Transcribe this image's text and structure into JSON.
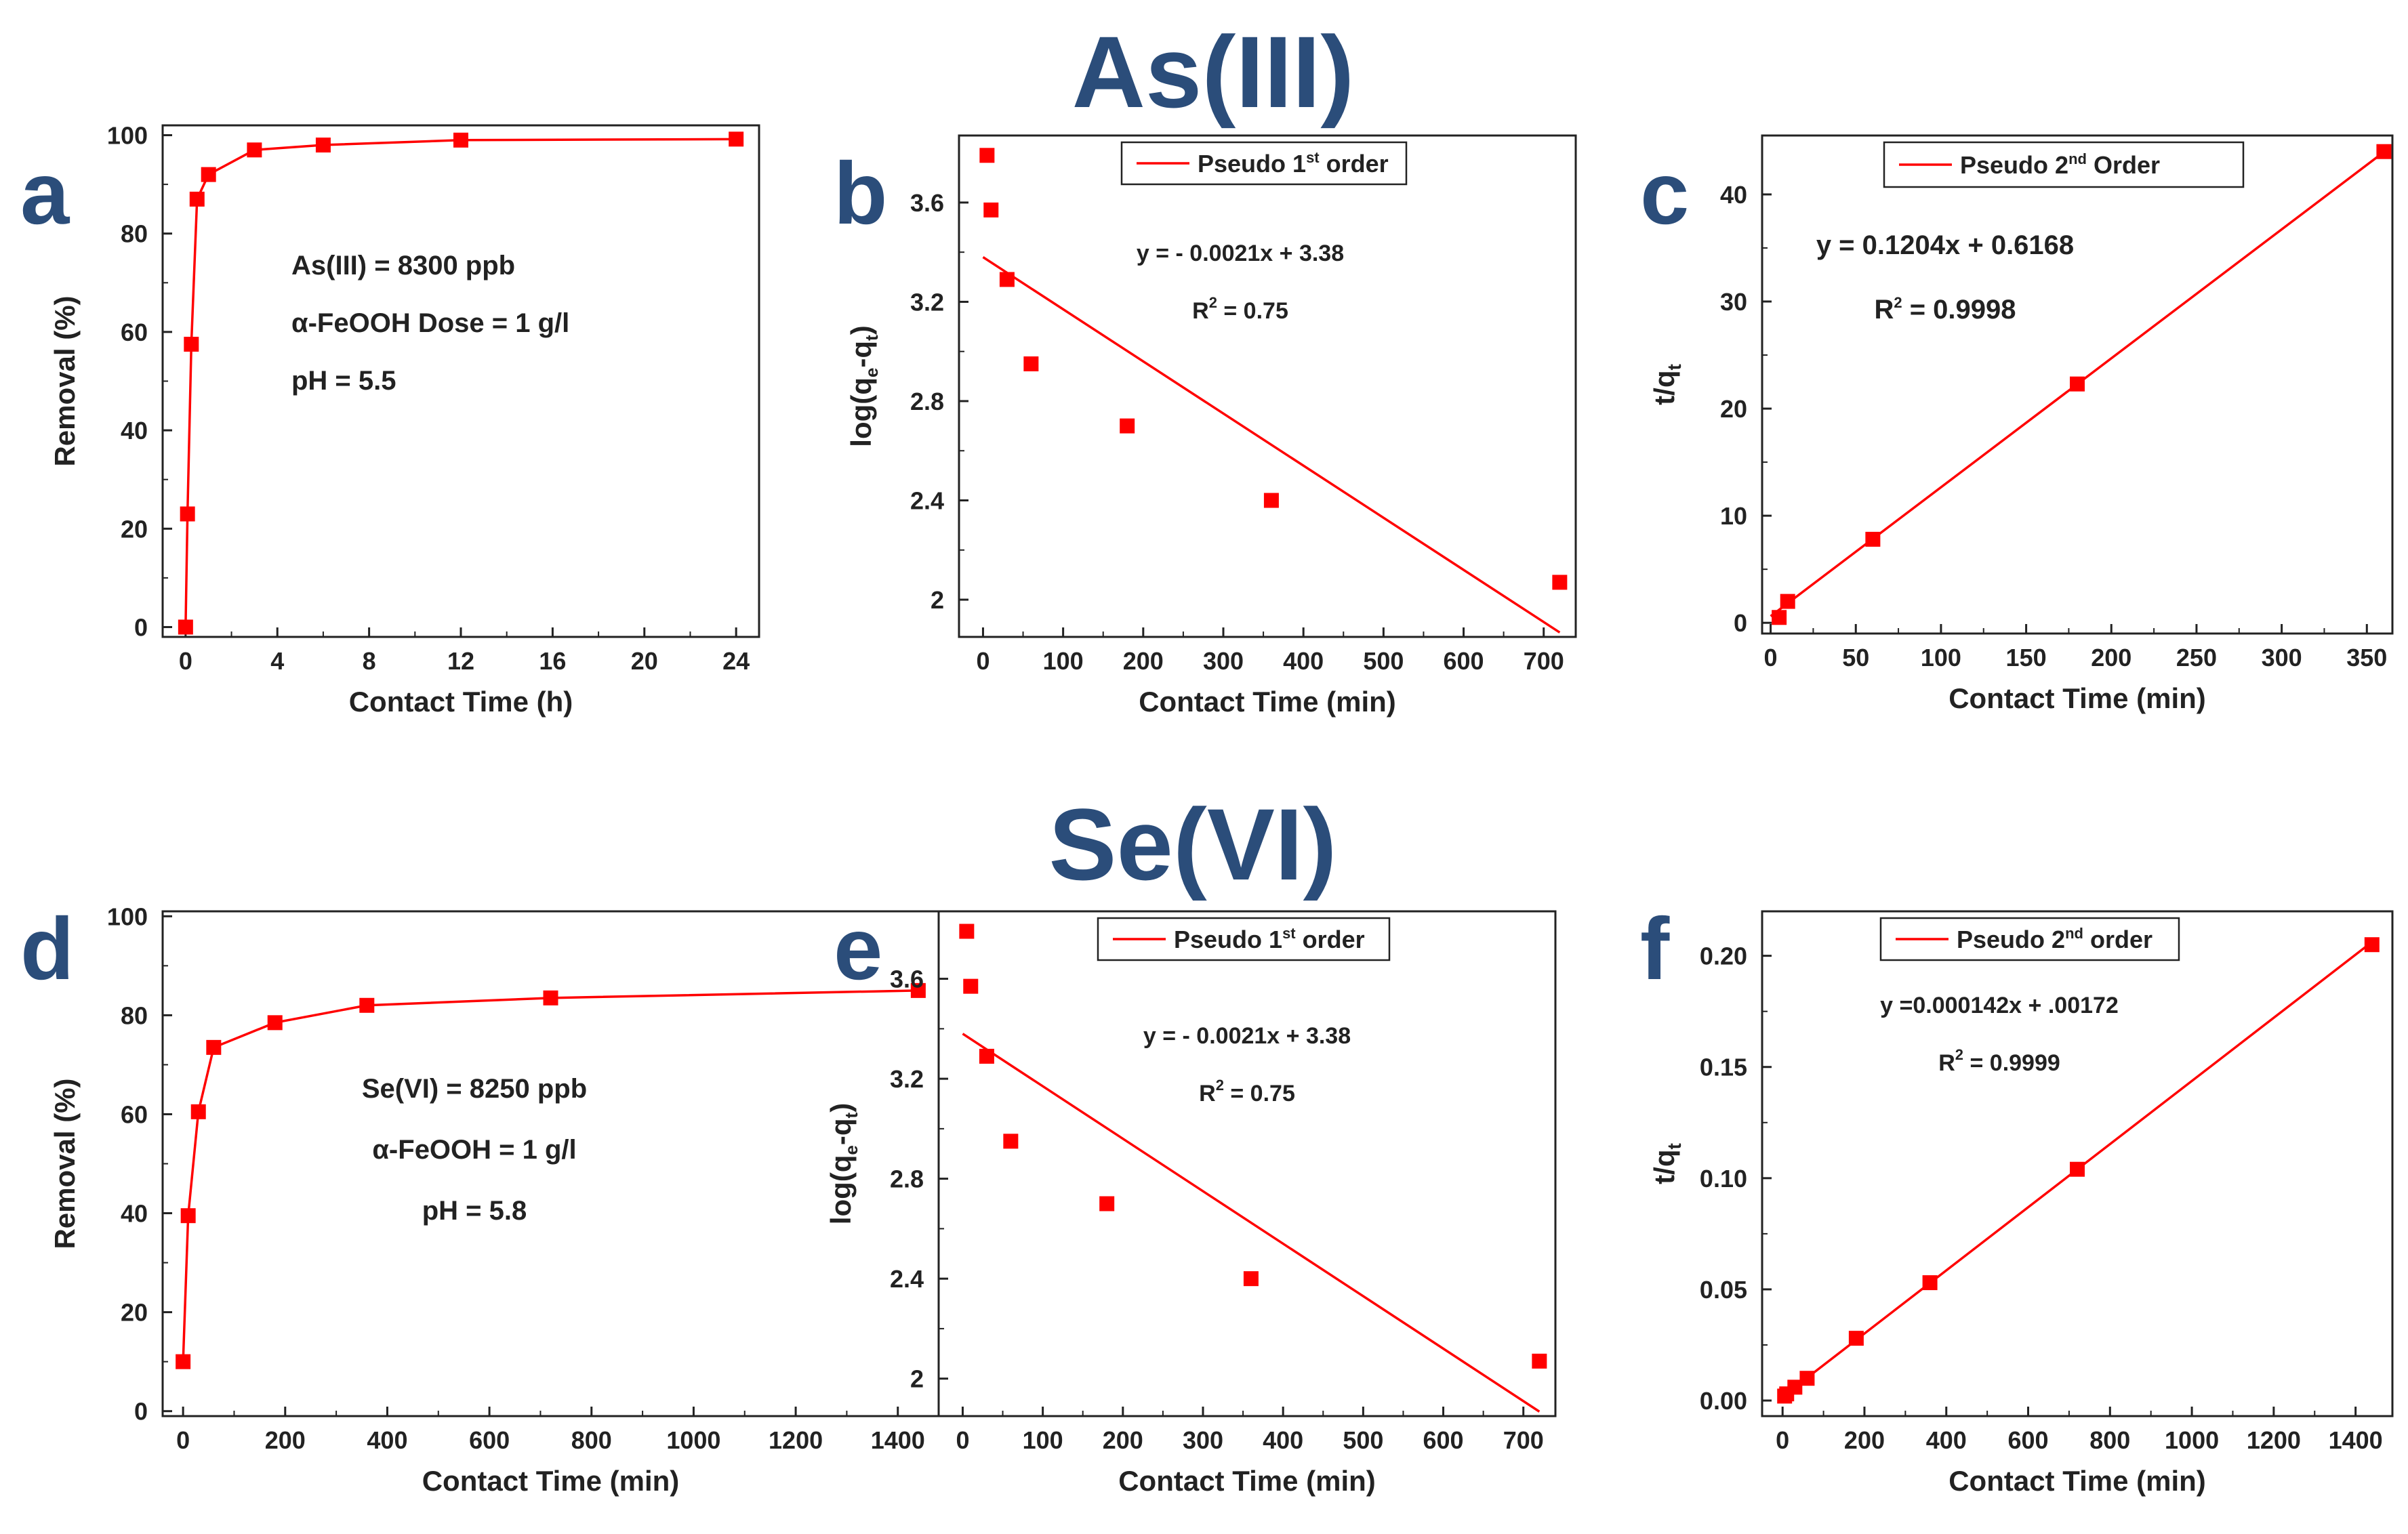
{
  "titles": {
    "as": "As(III)",
    "se": "Se(VI)"
  },
  "colors": {
    "series": "#ff0000",
    "title": "#2b4d7a",
    "axis": "#222222"
  },
  "chart_data": [
    {
      "id": "a",
      "letter": "a",
      "type": "line",
      "xlabel": "Contact Time (h)",
      "ylabel": "Removal (%)",
      "xlim": [
        -1,
        25
      ],
      "ylim": [
        -2,
        102
      ],
      "xticks": [
        0,
        4,
        8,
        12,
        16,
        20,
        24
      ],
      "yticks": [
        0,
        20,
        40,
        60,
        80,
        100
      ],
      "x": [
        0,
        0.083,
        0.25,
        0.5,
        1,
        3,
        6,
        12,
        24
      ],
      "y": [
        0,
        23,
        57.5,
        87,
        92,
        97,
        98,
        99,
        99.2
      ],
      "connect": true,
      "annotations": [
        "As(III) = 8300 ppb",
        "α-FeOOH Dose = 1 g/l",
        "pH  = 5.5"
      ]
    },
    {
      "id": "b",
      "letter": "b",
      "type": "scatter",
      "xlabel": "Contact Time (min)",
      "ylabel": "log(qe-qt)",
      "xlim": [
        -30,
        740
      ],
      "ylim": [
        1.85,
        3.87
      ],
      "xticks": [
        0,
        100,
        200,
        300,
        400,
        500,
        600,
        700
      ],
      "yticks": [
        2.0,
        2.4,
        2.8,
        3.2,
        3.6
      ],
      "x": [
        5,
        10,
        30,
        60,
        180,
        360,
        720
      ],
      "y": [
        3.79,
        3.57,
        3.29,
        2.95,
        2.7,
        2.4,
        2.07
      ],
      "fit": {
        "slope": -0.0021,
        "intercept": 3.38,
        "x0": 0,
        "x1": 720
      },
      "legend": "Pseudo 1st order",
      "annotations": [
        "y = - 0.0021x + 3.38",
        "R2 = 0.75"
      ]
    },
    {
      "id": "c",
      "letter": "c",
      "type": "scatter",
      "xlabel": "Contact Time (min)",
      "ylabel": "t/qt",
      "xlim": [
        -5,
        365
      ],
      "ylim": [
        -1,
        45.5
      ],
      "xticks": [
        0,
        50,
        100,
        150,
        200,
        250,
        300,
        350
      ],
      "yticks": [
        0,
        10,
        20,
        30,
        40
      ],
      "x": [
        5,
        10,
        60,
        180,
        360
      ],
      "y": [
        0.5,
        2,
        7.8,
        22.3,
        44
      ],
      "fit": {
        "slope": 0.1204,
        "intercept": 0.6168,
        "x0": 0,
        "x1": 360
      },
      "legend": "Pseudo 2nd Order",
      "annotations": [
        "y = 0.1204x + 0.6168",
        "R2 = 0.9998"
      ]
    },
    {
      "id": "d",
      "letter": "d",
      "type": "line",
      "xlabel": "Contact Time (min)",
      "ylabel": "Removal (%)",
      "xlim": [
        -40,
        1480
      ],
      "ylim": [
        -1,
        101
      ],
      "xticks": [
        0,
        200,
        400,
        600,
        800,
        1000,
        1200,
        1400
      ],
      "yticks": [
        0,
        20,
        40,
        60,
        80,
        100
      ],
      "x": [
        0,
        10,
        30,
        60,
        180,
        360,
        720,
        1440
      ],
      "y": [
        10,
        39.5,
        60.5,
        73.5,
        78.5,
        82,
        83.5,
        85
      ],
      "connect": true,
      "annotations": [
        "Se(VI) = 8250 ppb",
        "α-FeOOH = 1 g/l",
        "pH = 5.8"
      ]
    },
    {
      "id": "e",
      "letter": "e",
      "type": "scatter",
      "xlabel": "Contact Time (min)",
      "ylabel": "log(qe-qt)",
      "xlim": [
        -30,
        740
      ],
      "ylim": [
        1.85,
        3.87
      ],
      "xticks": [
        0,
        100,
        200,
        300,
        400,
        500,
        600,
        700
      ],
      "yticks": [
        2.0,
        2.4,
        2.8,
        3.2,
        3.6
      ],
      "x": [
        5,
        10,
        30,
        60,
        180,
        360,
        720
      ],
      "y": [
        3.79,
        3.57,
        3.29,
        2.95,
        2.7,
        2.4,
        2.07
      ],
      "fit": {
        "slope": -0.0021,
        "intercept": 3.38,
        "x0": 0,
        "x1": 720
      },
      "legend": "Pseudo 1st order",
      "annotations": [
        "y = - 0.0021x + 3.38",
        "R2 = 0.75"
      ]
    },
    {
      "id": "f",
      "letter": "f",
      "type": "scatter",
      "xlabel": "Contact Time (min)",
      "ylabel": "t/qt",
      "xlim": [
        -50,
        1490
      ],
      "ylim": [
        -0.007,
        0.22
      ],
      "xticks": [
        0,
        200,
        400,
        600,
        800,
        1000,
        1200,
        1400
      ],
      "yticks": [
        0.0,
        0.05,
        0.1,
        0.15,
        0.2
      ],
      "yfmt": 2,
      "x": [
        5,
        10,
        30,
        60,
        180,
        360,
        720,
        1440
      ],
      "y": [
        0.002,
        0.003,
        0.006,
        0.01,
        0.028,
        0.053,
        0.104,
        0.205
      ],
      "fit": {
        "slope": 0.000142,
        "intercept": 0.00172,
        "x0": 0,
        "x1": 1440
      },
      "legend": "Pseudo 2nd order",
      "annotations": [
        "y =0.000142x + .00172",
        "R2 = 0.9999"
      ]
    }
  ]
}
